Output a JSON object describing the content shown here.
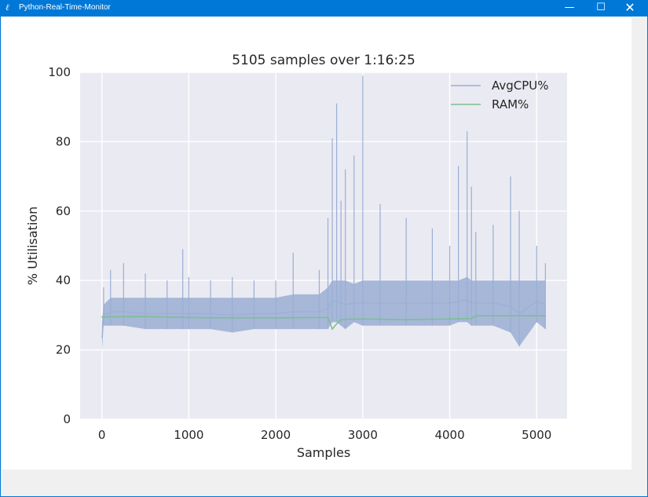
{
  "window": {
    "title": "Python-Real-Time-Monitor",
    "icon": "feather-icon",
    "controls": {
      "minimize": "—",
      "maximize": "☐",
      "close": "✕"
    }
  },
  "chart_data": {
    "type": "line",
    "title": "5105 samples over 1:16:25",
    "xlabel": "Samples",
    "ylabel": "% Utilisation",
    "xlim": [
      -250,
      5350
    ],
    "ylim": [
      0,
      100
    ],
    "xticks": [
      0,
      1000,
      2000,
      3000,
      4000,
      5000
    ],
    "yticks": [
      0,
      20,
      40,
      60,
      80,
      100
    ],
    "grid": true,
    "legend_position": "top-right",
    "series": [
      {
        "name": "AvgCPU%",
        "color": "#9aaed4",
        "x": [
          0,
          20,
          100,
          250,
          500,
          750,
          930,
          1000,
          1250,
          1500,
          1750,
          2000,
          2200,
          2500,
          2600,
          2650,
          2700,
          2750,
          2800,
          2900,
          3000,
          3200,
          3500,
          3800,
          4000,
          4100,
          4200,
          4250,
          4300,
          4500,
          4700,
          4800,
          5000,
          5100
        ],
        "values": [
          19,
          38,
          43,
          45,
          42,
          40,
          49,
          41,
          40,
          41,
          40,
          40,
          48,
          43,
          58,
          81,
          91,
          63,
          72,
          76,
          99,
          62,
          58,
          55,
          50,
          73,
          83,
          67,
          54,
          56,
          70,
          60,
          50,
          45
        ],
        "band_low": [
          19,
          27,
          27,
          27,
          26,
          26,
          26,
          26,
          26,
          25,
          26,
          26,
          26,
          26,
          26,
          28,
          28,
          27,
          26,
          28,
          27,
          27,
          27,
          27,
          27,
          28,
          28,
          27,
          27,
          27,
          25,
          21,
          28,
          26
        ],
        "band_high": [
          28,
          33,
          35,
          35,
          35,
          35,
          35,
          35,
          35,
          35,
          35,
          35,
          36,
          36,
          38,
          40,
          40,
          40,
          40,
          39,
          40,
          40,
          40,
          40,
          40,
          40,
          41,
          40,
          40,
          40,
          40,
          40,
          40,
          40
        ]
      },
      {
        "name": "RAM%",
        "color": "#7bbf8e",
        "x": [
          0,
          500,
          1000,
          1500,
          2000,
          2500,
          2600,
          2650,
          2700,
          2750,
          2800,
          3000,
          3500,
          4000,
          4250,
          4300,
          5000,
          5100
        ],
        "values": [
          29.5,
          29.6,
          29.3,
          29.2,
          29.2,
          29.3,
          29.3,
          26.0,
          27.5,
          28.7,
          28.8,
          28.9,
          28.7,
          28.9,
          29.0,
          29.8,
          29.8,
          29.8
        ]
      }
    ]
  }
}
